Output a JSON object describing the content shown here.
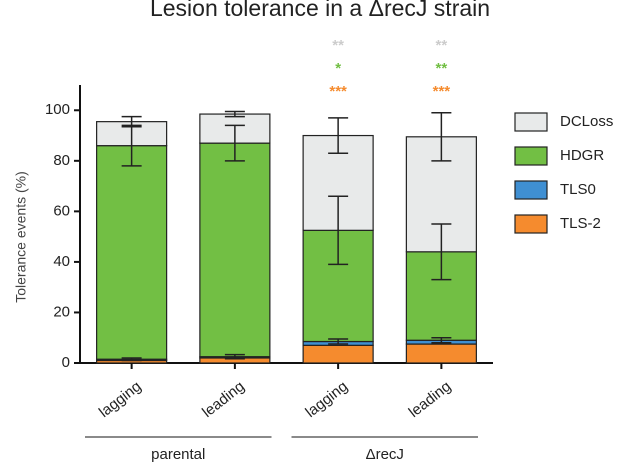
{
  "chart_data": {
    "type": "stacked_bar",
    "title": "Lesion tolerance in a ΔrecJ strain",
    "y_label": "Tolerance events (%)",
    "categories": [
      "lagging",
      "leading",
      "lagging",
      "leading"
    ],
    "category_groups": [
      "parental",
      "ΔrecJ"
    ],
    "ylim": [
      0,
      110
    ],
    "yticks": [
      0,
      20,
      40,
      60,
      80,
      100
    ],
    "series": [
      {
        "name": "TLS-2",
        "color": "#f58b2e",
        "values": [
          1,
          2,
          7,
          7.5
        ],
        "significance": [
          null,
          null,
          "***",
          "***"
        ]
      },
      {
        "name": "TLS0",
        "color": "#3f8fd2",
        "values": [
          0.5,
          0.5,
          1.5,
          1.5
        ],
        "errors": [
          0.5,
          0.8,
          1,
          1
        ]
      },
      {
        "name": "HDGR",
        "color": "#72bf44",
        "values": [
          84.5,
          84.5,
          44,
          35
        ],
        "errors": [
          8,
          7,
          13.5,
          11
        ],
        "significance": [
          null,
          null,
          "*",
          "**"
        ]
      },
      {
        "name": "DCLoss",
        "color": "#e8eaea",
        "values": [
          9.5,
          11.5,
          37.5,
          45.5
        ],
        "errors": [
          2,
          1,
          7,
          9.5
        ],
        "significance": [
          null,
          null,
          "**",
          "**"
        ]
      }
    ]
  }
}
